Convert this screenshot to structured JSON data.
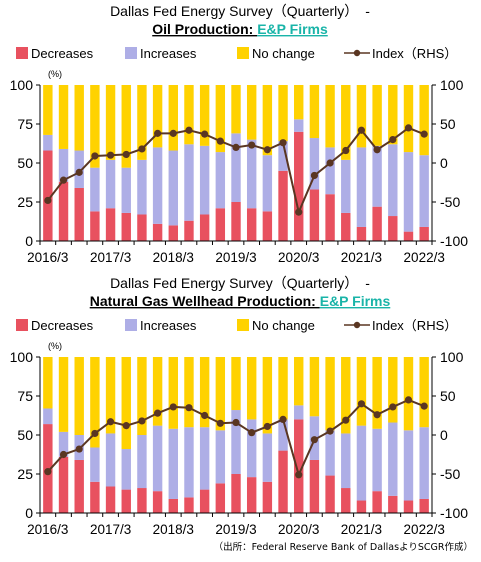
{
  "source": "（出所：Federal Reserve Bank of DallasよりSCGR作成）",
  "colors": {
    "decreases": "#e8515f",
    "increases": "#aeaee6",
    "no_change": "#ffd200",
    "index": "#5a3622",
    "highlight": "#19b4a8"
  },
  "chart_data": [
    {
      "type": "bar",
      "title_line1": "Dallas Fed Energy Survey（Quarterly）　-",
      "title_bold": "Oil Production: ",
      "title_highlight": "E&P Firms",
      "legend": [
        "Decreases",
        "Increases",
        "No change",
        "Index（RHS）"
      ],
      "left_unit": "(%)",
      "ylim": [
        0,
        100
      ],
      "y2lim": [
        -100,
        100
      ],
      "yticks": [
        0,
        25,
        50,
        75,
        100
      ],
      "y2ticks": [
        -100,
        -50,
        0,
        50,
        100
      ],
      "xtick_labels": [
        "2016/3",
        "2017/3",
        "2018/3",
        "2019/3",
        "2020/3",
        "2021/3",
        "2022/3"
      ],
      "series": [
        {
          "name": "Decreases",
          "values": [
            58,
            38,
            34,
            19,
            21,
            18,
            17,
            11,
            10,
            13,
            17,
            21,
            25,
            21,
            19,
            45,
            70,
            33,
            30,
            18,
            9,
            22,
            16,
            6,
            9
          ]
        },
        {
          "name": "Increases",
          "values": [
            10,
            21,
            24,
            28,
            31,
            29,
            35,
            49,
            48,
            49,
            44,
            36,
            44,
            44,
            36,
            19,
            8,
            33,
            30,
            34,
            51,
            39,
            46,
            51,
            46
          ]
        },
        {
          "name": "No change",
          "values": [
            32,
            41,
            42,
            53,
            48,
            53,
            48,
            40,
            42,
            38,
            39,
            43,
            31,
            35,
            45,
            36,
            22,
            34,
            40,
            48,
            40,
            39,
            38,
            43,
            45
          ]
        },
        {
          "name": "Index（RHS）",
          "values": [
            -48,
            -22,
            -12,
            9,
            10,
            11,
            18,
            38,
            38,
            42,
            37,
            28,
            20,
            23,
            17,
            26,
            -63,
            -16,
            0,
            16,
            42,
            17,
            30,
            45,
            37
          ]
        }
      ]
    },
    {
      "type": "bar",
      "title_line1": "Dallas Fed Energy Survey（Quarterly）　-",
      "title_bold": "Natural Gas Wellhead Production: ",
      "title_highlight": "E&P Firms",
      "legend": [
        "Decreases",
        "Increases",
        "No change",
        "Index（RHS）"
      ],
      "left_unit": "(%)",
      "ylim": [
        0,
        100
      ],
      "y2lim": [
        -100,
        100
      ],
      "yticks": [
        0,
        25,
        50,
        75,
        100
      ],
      "y2ticks": [
        -100,
        -50,
        0,
        50,
        100
      ],
      "xtick_labels": [
        "2016/3",
        "2017/3",
        "2018/3",
        "2019/3",
        "2020/3",
        "2021/3",
        "2022/3"
      ],
      "series": [
        {
          "name": "Decreases",
          "values": [
            57,
            36,
            34,
            20,
            17,
            15,
            16,
            14,
            9,
            10,
            15,
            19,
            25,
            23,
            20,
            40,
            60,
            34,
            24,
            16,
            8,
            14,
            11,
            8,
            9
          ]
        },
        {
          "name": "Increases",
          "values": [
            10,
            16,
            16,
            22,
            34,
            26,
            34,
            42,
            45,
            45,
            40,
            34,
            41,
            37,
            31,
            20,
            9,
            28,
            29,
            35,
            48,
            40,
            47,
            45,
            46
          ]
        },
        {
          "name": "No change",
          "values": [
            33,
            48,
            50,
            58,
            49,
            59,
            50,
            44,
            46,
            45,
            45,
            47,
            34,
            40,
            49,
            40,
            31,
            38,
            47,
            49,
            44,
            46,
            42,
            47,
            45
          ]
        },
        {
          "name": "Index（RHS）",
          "values": [
            -47,
            -25,
            -18,
            2,
            17,
            12,
            18,
            28,
            36,
            35,
            25,
            15,
            16,
            3,
            11,
            20,
            -51,
            -6,
            5,
            19,
            40,
            26,
            36,
            45,
            37
          ]
        }
      ]
    }
  ]
}
